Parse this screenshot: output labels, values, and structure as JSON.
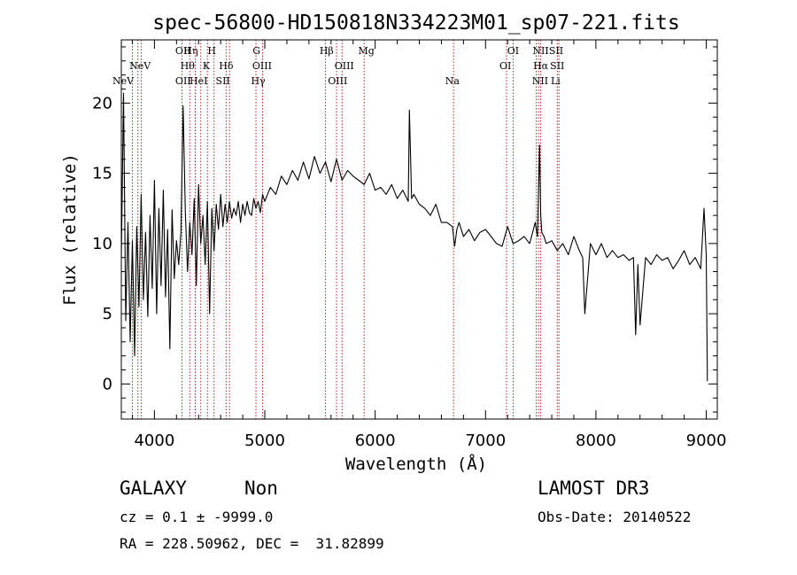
{
  "chart_data": {
    "type": "line",
    "title": "spec-56800-HD150818N334223M01_sp07-221.fits",
    "xlabel": "Wavelength (Å)",
    "ylabel": "Flux (relative)",
    "xlim": [
      3700,
      9100
    ],
    "ylim": [
      -2.5,
      24.5
    ],
    "xticks": [
      4000,
      5000,
      6000,
      7000,
      8000,
      9000
    ],
    "yticks": [
      0,
      5,
      10,
      15,
      20
    ],
    "grid": false,
    "series": [
      {
        "x": [
          3700,
          3720,
          3740,
          3760,
          3780,
          3800,
          3820,
          3840,
          3860,
          3880,
          3900,
          3920,
          3940,
          3960,
          3980,
          4000,
          4020,
          4040,
          4060,
          4080,
          4100,
          4120,
          4140,
          4160,
          4180,
          4200,
          4220,
          4240,
          4260,
          4280,
          4300,
          4320,
          4340,
          4360,
          4380,
          4400,
          4420,
          4440,
          4460,
          4480,
          4500,
          4520,
          4540,
          4560,
          4580,
          4600,
          4620,
          4640,
          4660,
          4680,
          4700,
          4720,
          4740,
          4760,
          4780,
          4800,
          4820,
          4840,
          4860,
          4880,
          4900,
          4920,
          4940,
          4960,
          4980,
          5000,
          5050,
          5100,
          5150,
          5200,
          5250,
          5300,
          5350,
          5400,
          5450,
          5500,
          5550,
          5600,
          5650,
          5700,
          5750,
          5800,
          5850,
          5900,
          5950,
          6000,
          6050,
          6100,
          6150,
          6200,
          6250,
          6300,
          6310,
          6330,
          6350,
          6400,
          6450,
          6500,
          6550,
          6600,
          6650,
          6700,
          6720,
          6740,
          6760,
          6800,
          6850,
          6900,
          6950,
          7000,
          7050,
          7100,
          7150,
          7200,
          7250,
          7300,
          7350,
          7400,
          7450,
          7470,
          7490,
          7500,
          7510,
          7530,
          7550,
          7600,
          7650,
          7700,
          7750,
          7800,
          7850,
          7880,
          7900,
          7950,
          8000,
          8050,
          8100,
          8150,
          8200,
          8250,
          8300,
          8340,
          8360,
          8380,
          8400,
          8450,
          8500,
          8550,
          8600,
          8650,
          8700,
          8750,
          8800,
          8850,
          8900,
          8950,
          8980,
          9000,
          9010
        ],
        "y": [
          9.0,
          20.7,
          4.5,
          11.5,
          3.0,
          10.2,
          2.0,
          11.2,
          5.5,
          13.5,
          6.0,
          10.8,
          4.8,
          12.0,
          6.8,
          14.5,
          5.0,
          12.5,
          7.0,
          13.8,
          6.2,
          11.0,
          2.5,
          12.4,
          7.5,
          10.2,
          8.5,
          10.8,
          19.8,
          12.2,
          8.0,
          11.5,
          9.2,
          13.2,
          7.0,
          14.2,
          10.0,
          12.0,
          8.5,
          13.0,
          5.0,
          12.5,
          9.5,
          12.8,
          11.0,
          13.5,
          11.2,
          12.8,
          11.5,
          13.0,
          11.8,
          12.5,
          12.0,
          13.0,
          11.5,
          12.8,
          12.0,
          13.0,
          12.2,
          12.0,
          13.2,
          12.5,
          13.0,
          12.2,
          13.5,
          13.0,
          14.0,
          13.5,
          14.8,
          14.2,
          15.2,
          14.5,
          15.8,
          14.6,
          16.2,
          15.0,
          15.8,
          14.4,
          16.0,
          14.5,
          15.2,
          14.8,
          14.5,
          14.2,
          15.0,
          13.8,
          14.0,
          13.5,
          14.2,
          13.2,
          13.8,
          13.0,
          19.5,
          13.2,
          13.5,
          12.8,
          12.5,
          12.0,
          12.8,
          11.5,
          11.5,
          11.2,
          9.8,
          11.0,
          11.5,
          10.5,
          11.0,
          10.2,
          10.8,
          11.0,
          10.5,
          10.0,
          9.8,
          11.2,
          10.0,
          10.2,
          10.5,
          10.0,
          11.5,
          10.5,
          17.0,
          12.0,
          10.8,
          10.5,
          10.0,
          10.2,
          9.5,
          10.0,
          9.2,
          10.5,
          9.5,
          9.0,
          5.0,
          10.0,
          9.2,
          10.0,
          9.0,
          9.5,
          9.0,
          9.2,
          8.8,
          9.0,
          3.5,
          8.5,
          4.2,
          9.0,
          8.5,
          9.2,
          8.8,
          9.0,
          8.2,
          8.8,
          9.5,
          8.5,
          9.0,
          8.2,
          12.5,
          9.2,
          0.2
        ]
      }
    ],
    "line_labels": [
      {
        "text": "NeV",
        "x": 3426,
        "row": 2
      },
      {
        "text": "NeV",
        "x": 3870,
        "row": 1
      },
      {
        "text": "OII",
        "x": 4260,
        "row": 0
      },
      {
        "text": "OII",
        "x": 4260,
        "row": 2
      },
      {
        "text": "Hη",
        "x": 4330,
        "row": 0
      },
      {
        "text": "Hθ",
        "x": 4300,
        "row": 1
      },
      {
        "text": "HeI",
        "x": 4400,
        "row": 2
      },
      {
        "text": "H",
        "x": 4520,
        "row": 0
      },
      {
        "text": "K",
        "x": 4470,
        "row": 1
      },
      {
        "text": "SII",
        "x": 4620,
        "row": 2
      },
      {
        "text": "Hδ",
        "x": 4650,
        "row": 1
      },
      {
        "text": "G",
        "x": 4925,
        "row": 0
      },
      {
        "text": "OIII",
        "x": 4975,
        "row": 1
      },
      {
        "text": "Hγ",
        "x": 4940,
        "row": 2
      },
      {
        "text": "Hβ",
        "x": 5560,
        "row": 0
      },
      {
        "text": "OIII",
        "x": 5720,
        "row": 1
      },
      {
        "text": "OIII",
        "x": 5660,
        "row": 2
      },
      {
        "text": "Mg",
        "x": 5920,
        "row": 0
      },
      {
        "text": "Na",
        "x": 6700,
        "row": 2
      },
      {
        "text": "OI",
        "x": 7250,
        "row": 0
      },
      {
        "text": "OI",
        "x": 7180,
        "row": 1
      },
      {
        "text": "NII",
        "x": 7500,
        "row": 0
      },
      {
        "text": "SII",
        "x": 7640,
        "row": 0
      },
      {
        "text": "Hα",
        "x": 7500,
        "row": 1
      },
      {
        "text": "SII",
        "x": 7650,
        "row": 1
      },
      {
        "text": "NII",
        "x": 7495,
        "row": 2
      },
      {
        "text": "Li",
        "x": 7635,
        "row": 2
      }
    ],
    "line_positions": [
      3800,
      3850,
      3880,
      4250,
      4320,
      4370,
      4420,
      4480,
      4540,
      4650,
      4680,
      4920,
      4980,
      5550,
      5650,
      5700,
      5900,
      6710,
      7190,
      7250,
      7460,
      7480,
      7500,
      7650,
      7665
    ]
  },
  "info": {
    "object_type": "GALAXY",
    "subclass": "Non",
    "survey": "LAMOST DR3",
    "redshift_line": "cz = 0.1 ± -9999.0",
    "obs_date_line": "Obs-Date: 20140522",
    "coords_line": "RA = 228.50962, DEC =  31.82899"
  }
}
